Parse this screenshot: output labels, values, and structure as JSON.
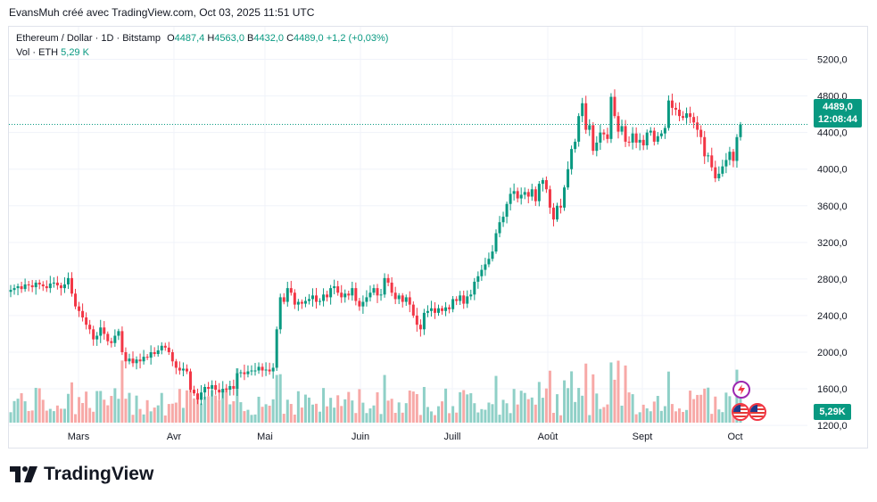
{
  "header": {
    "note": "EvansMuh créé avec TradingView.com, Oct 03, 2025 11:51 UTC"
  },
  "legend": {
    "symbol": "Ethereum / Dollar · 1D · Bitstamp",
    "open_label": "O",
    "open": "4487,4",
    "high_label": "H",
    "high": "4563,0",
    "low_label": "B",
    "low": "4432,0",
    "close_label": "C",
    "close": "4489,0",
    "change": "+1,2 (+0,03%)",
    "volume_label": "Vol · ETH",
    "volume": "5,29 K"
  },
  "price_tag": {
    "price": "4489,0",
    "countdown": "12:08:44"
  },
  "volume_tag": "5,29K",
  "branding": {
    "logo_text": "TradingView"
  },
  "events": {
    "icons": [
      "flash-event-icon",
      "us-flag-event-icon",
      "us-flag-event-icon"
    ]
  },
  "colors": {
    "up": "#089981",
    "down": "#f23645",
    "volume_up": "#8fd0c7",
    "volume_down": "#f7a9a7",
    "grid": "#f0f3fa",
    "axis_text": "#131722"
  },
  "chart_data": {
    "type": "candlestick",
    "x_tick_labels": [
      "Mars",
      "Avr",
      "Mai",
      "Juin",
      "Juill",
      "Août",
      "Sept",
      "Oct"
    ],
    "y_tick_labels": [
      "5200,0",
      "4800,0",
      "4400,0",
      "4000,0",
      "3600,0",
      "3200,0",
      "2800,0",
      "2400,0",
      "2000,0",
      "1600,0",
      "1200,0"
    ],
    "y_ticks": [
      5200,
      4800,
      4400,
      4000,
      3600,
      3200,
      2800,
      2400,
      2000,
      1600,
      1200
    ],
    "ylim": [
      1000,
      5400
    ],
    "grid": true,
    "last_price": 4489.0,
    "closes": [
      2680,
      2700,
      2720,
      2690,
      2740,
      2730,
      2710,
      2760,
      2740,
      2720,
      2700,
      2750,
      2760,
      2730,
      2700,
      2740,
      2810,
      2640,
      2500,
      2450,
      2380,
      2300,
      2250,
      2140,
      2180,
      2270,
      2200,
      2120,
      2100,
      2180,
      2230,
      2000,
      1900,
      1930,
      1880,
      1920,
      1900,
      1950,
      1940,
      2000,
      1980,
      2020,
      2070,
      2050,
      2000,
      1900,
      1830,
      1800,
      1820,
      1790,
      1590,
      1550,
      1480,
      1560,
      1620,
      1600,
      1640,
      1590,
      1560,
      1600,
      1590,
      1630,
      1600,
      1770,
      1780,
      1760,
      1790,
      1800,
      1800,
      1840,
      1800,
      1810,
      1790,
      1830,
      2250,
      2600,
      2550,
      2700,
      2650,
      2520,
      2550,
      2530,
      2560,
      2580,
      2620,
      2550,
      2560,
      2630,
      2600,
      2700,
      2720,
      2650,
      2600,
      2640,
      2620,
      2700,
      2560,
      2500,
      2550,
      2600,
      2650,
      2700,
      2620,
      2630,
      2810,
      2760,
      2650,
      2580,
      2620,
      2550,
      2600,
      2520,
      2400,
      2300,
      2250,
      2430,
      2450,
      2480,
      2430,
      2480,
      2450,
      2490,
      2470,
      2580,
      2560,
      2620,
      2530,
      2610,
      2630,
      2770,
      2830,
      2900,
      2960,
      3020,
      3100,
      3300,
      3420,
      3480,
      3620,
      3730,
      3760,
      3680,
      3720,
      3750,
      3700,
      3780,
      3650,
      3840,
      3880,
      3780,
      3580,
      3450,
      3600,
      3580,
      3800,
      4000,
      4220,
      4300,
      4580,
      4720,
      4430,
      4480,
      4200,
      4290,
      4400,
      4380,
      4330,
      4790,
      4580,
      4410,
      4470,
      4300,
      4290,
      4390,
      4290,
      4320,
      4260,
      4400,
      4420,
      4300,
      4360,
      4390,
      4450,
      4750,
      4670,
      4650,
      4580,
      4560,
      4610,
      4570,
      4510,
      4430,
      4350,
      4140,
      4150,
      4020,
      3900,
      3950,
      4030,
      4100,
      4190,
      4090,
      4350,
      4489
    ]
  }
}
